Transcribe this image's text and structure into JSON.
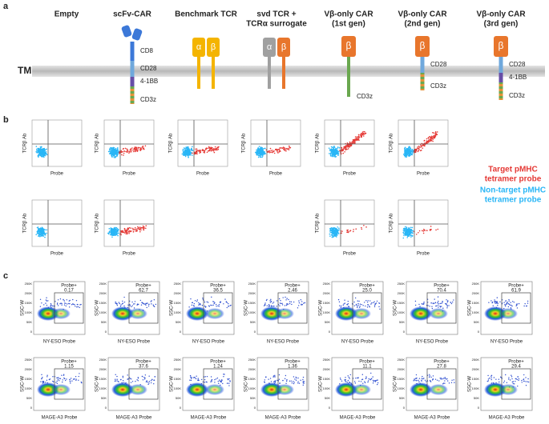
{
  "panel_labels": [
    "a",
    "b",
    "c"
  ],
  "panel_a": {
    "membrane_label": "TM",
    "chain_labels": {
      "alpha": "α",
      "beta": "β"
    },
    "constructs": [
      {
        "title": [
          "Empty"
        ],
        "domains": []
      },
      {
        "title": [
          "scFv-CAR"
        ],
        "domains": [
          "CD8",
          "CD28",
          "4-1BB",
          "CD3z"
        ]
      },
      {
        "title": [
          "Benchmark TCR"
        ],
        "domains": []
      },
      {
        "title": [
          "svd TCR +",
          "TCRα surrogate"
        ],
        "domains": []
      },
      {
        "title": [
          "Vβ-only CAR",
          "(1st gen)"
        ],
        "domains": [
          "CD3z"
        ]
      },
      {
        "title": [
          "Vβ-only CAR",
          "(2nd gen)"
        ],
        "domains": [
          "CD28",
          "CD3z"
        ]
      },
      {
        "title": [
          "Vβ-only CAR",
          "(3rd gen)"
        ],
        "domains": [
          "CD28",
          "4-1BB",
          "CD3z"
        ]
      }
    ]
  },
  "panel_b": {
    "x_label": "Probe",
    "y_label": "TCRβ Ab",
    "legend": {
      "target": [
        "Target pMHC",
        "tetramer probe"
      ],
      "non_target": [
        "Non-target pMHC",
        "tetramer probe"
      ]
    }
  },
  "panel_c": {
    "y_label": "SSC-W",
    "y_ticks": [
      "250K",
      "200K",
      "150K",
      "100K",
      "50K",
      "0"
    ],
    "gate_label": "Probe+",
    "rows": [
      {
        "x_label": "NY-ESO Probe",
        "values": [
          "0.17",
          "62.7",
          "36.5",
          "2.46",
          "25.0",
          "70.4",
          "61.9"
        ]
      },
      {
        "x_label": "MAGE-A3 Probe",
        "values": [
          "1.15",
          "37.6",
          "1.24",
          "1.36",
          "11.1",
          "27.8",
          "29.4"
        ]
      }
    ]
  }
}
